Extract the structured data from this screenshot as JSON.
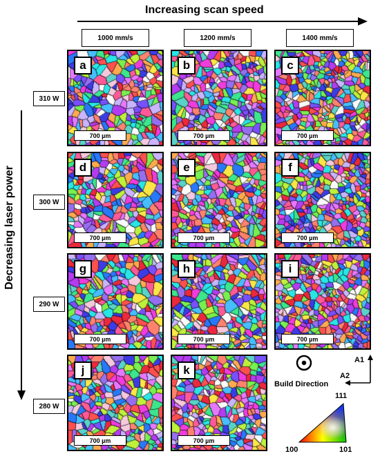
{
  "figure": {
    "top_title": "Increasing scan speed",
    "side_title": "Decreasing laser power",
    "columns": [
      "1000 mm/s",
      "1200 mm/s",
      "1400 mm/s"
    ],
    "rows": [
      "310 W",
      "300 W",
      "290 W",
      "280 W"
    ],
    "panels": [
      {
        "letter": "a",
        "scale": "700 µm"
      },
      {
        "letter": "b",
        "scale": "700 µm"
      },
      {
        "letter": "c",
        "scale": "700 µm"
      },
      {
        "letter": "d",
        "scale": "700 µm"
      },
      {
        "letter": "e",
        "scale": "700 µm"
      },
      {
        "letter": "f",
        "scale": "700 µm"
      },
      {
        "letter": "g",
        "scale": "700 µm"
      },
      {
        "letter": "h",
        "scale": "700 µm"
      },
      {
        "letter": "i",
        "scale": "700 µm"
      },
      {
        "letter": "j",
        "scale": "700 µm"
      },
      {
        "letter": "k",
        "scale": "700 µm"
      }
    ],
    "legend": {
      "build_direction": "Build Direction",
      "axis_1": "A1",
      "axis_2": "A2",
      "corner_100": "100",
      "corner_111": "111",
      "corner_101": "101"
    }
  }
}
